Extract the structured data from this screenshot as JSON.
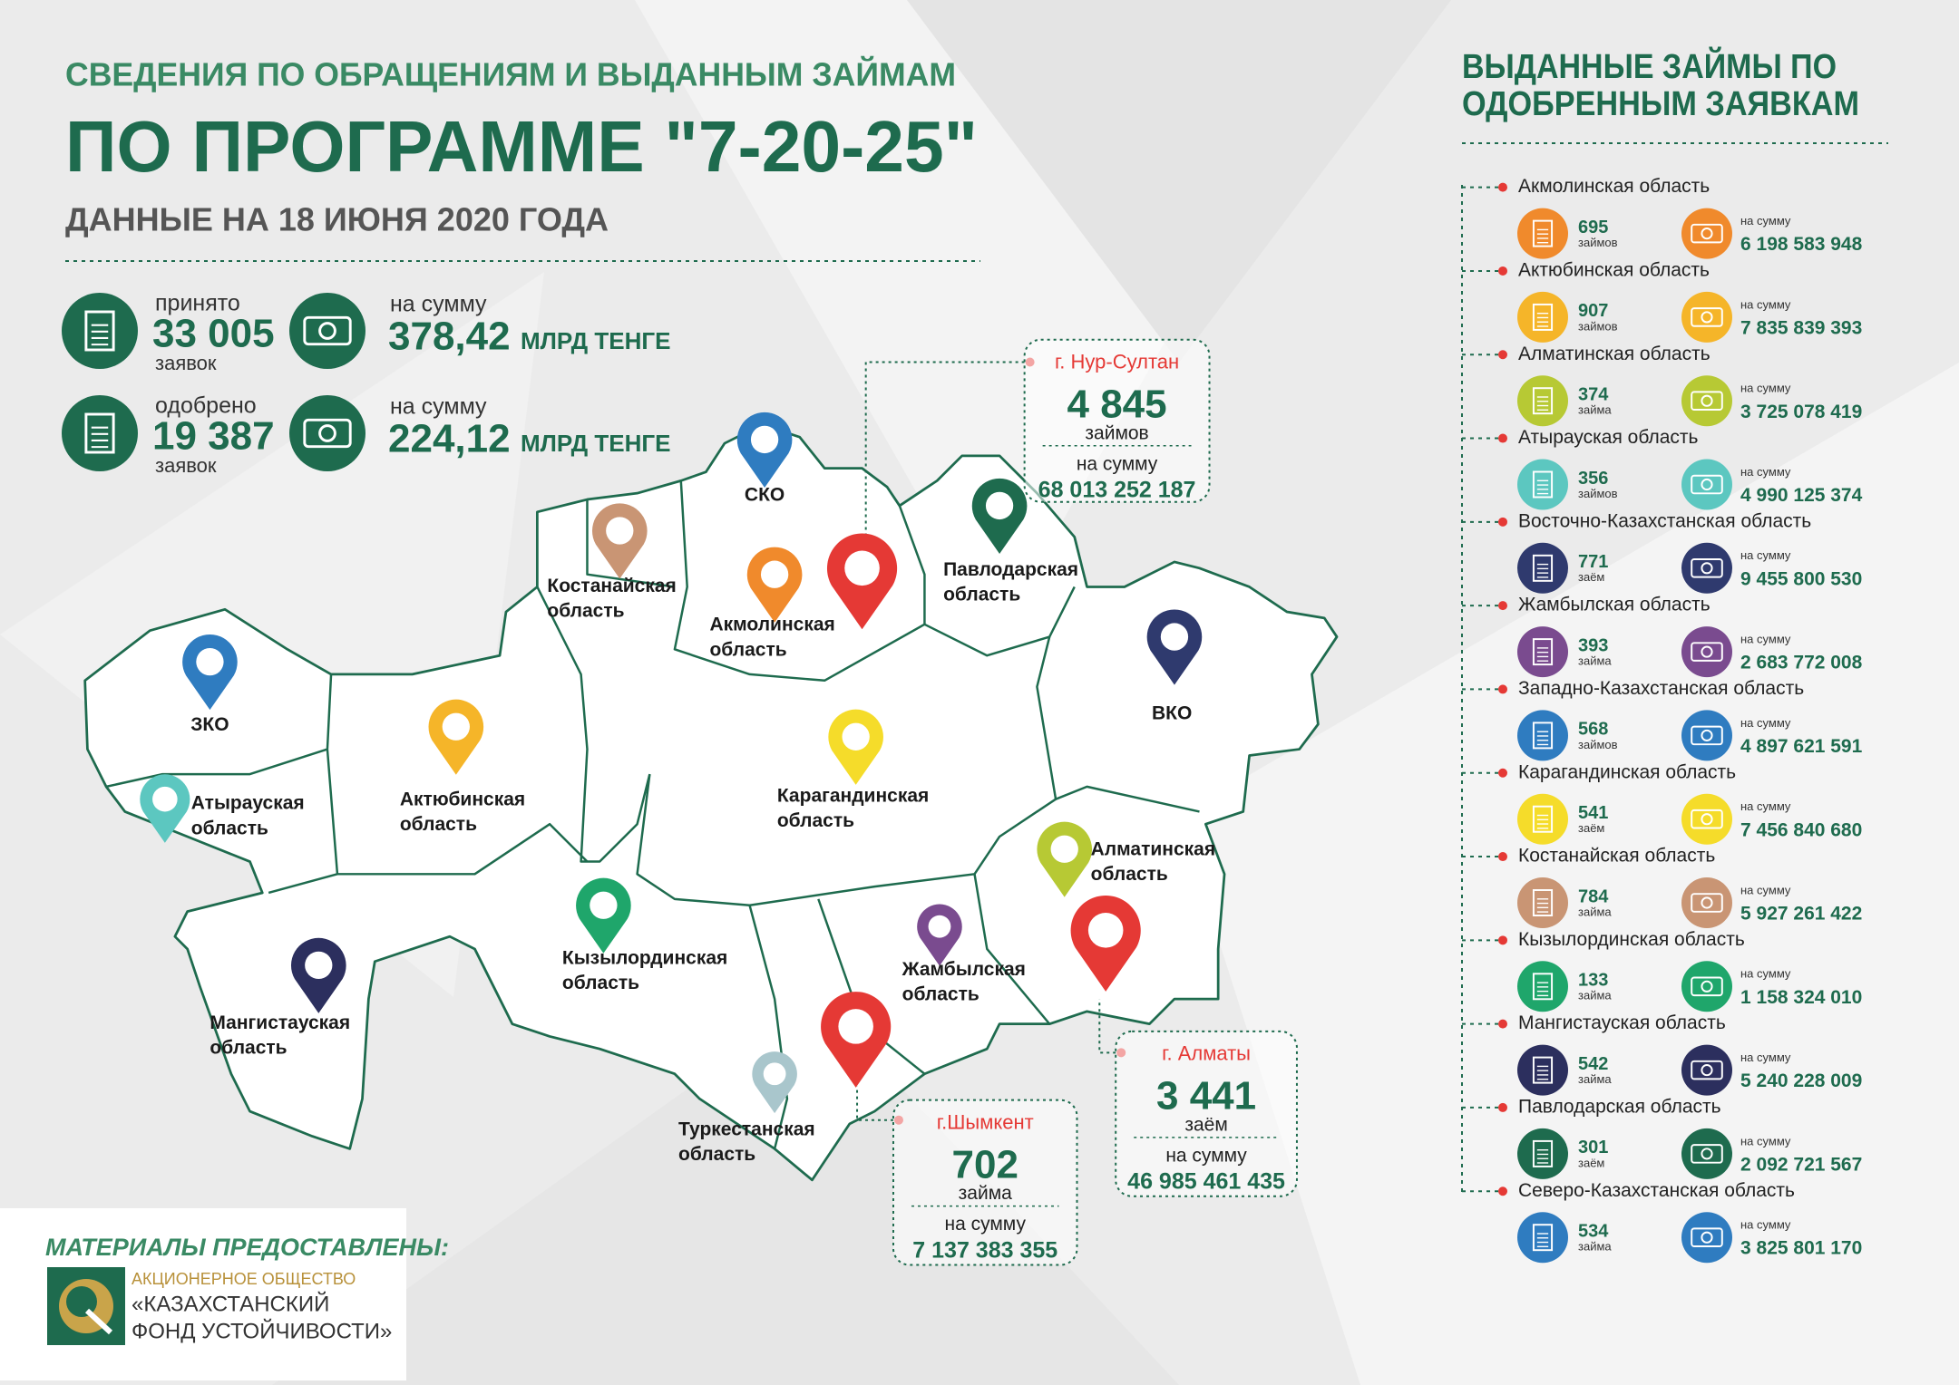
{
  "header": {
    "subtitle": "СВЕДЕНИЯ ПО ОБРАЩЕНИЯМ И ВЫДАННЫМ ЗАЙМАМ",
    "title": "ПО ПРОГРАММЕ \"7-20-25\"",
    "date": "ДАННЫЕ НА 18 ИЮНЯ 2020 ГОДА"
  },
  "summary": [
    {
      "label": "принято",
      "count": "33 005",
      "unit": "заявок",
      "sum_label": "на сумму",
      "sum": "378,42",
      "sum_unit": "МЛРД ТЕНГЕ"
    },
    {
      "label": "одобрено",
      "count": "19 387",
      "unit": "заявок",
      "sum_label": "на сумму",
      "sum": "224,12",
      "sum_unit": "МЛРД ТЕНГЕ"
    }
  ],
  "map": {
    "regions": [
      {
        "label": [
          "СКО"
        ]
      },
      {
        "label": [
          "Костанайская",
          "область"
        ]
      },
      {
        "label": [
          "Акмолинская",
          "область"
        ]
      },
      {
        "label": [
          "Павлодарская",
          "область"
        ]
      },
      {
        "label": [
          "ЗКО"
        ]
      },
      {
        "label": [
          "Атырауская",
          "область"
        ]
      },
      {
        "label": [
          "Актюбинская",
          "область"
        ]
      },
      {
        "label": [
          "Карагандинская",
          "область"
        ]
      },
      {
        "label": [
          "ВКО"
        ]
      },
      {
        "label": [
          "Алматинская",
          "область"
        ]
      },
      {
        "label": [
          "Жамбылская",
          "область"
        ]
      },
      {
        "label": [
          "Кызылординская",
          "область"
        ]
      },
      {
        "label": [
          "Мангистауская",
          "область"
        ]
      },
      {
        "label": [
          "Туркестанская",
          "область"
        ]
      }
    ],
    "cities": [
      {
        "name": "г. Нур-Султан",
        "count": "4 845",
        "unit": "займов",
        "sum_label": "на сумму",
        "sum": "68 013 252 187"
      },
      {
        "name": "г. Алматы",
        "count": "3 441",
        "unit": "заём",
        "sum_label": "на сумму",
        "sum": "46 985 461 435"
      },
      {
        "name": "г.Шымкент",
        "count": "702",
        "unit": "займа",
        "sum_label": "на сумму",
        "sum": "7 137 383 355"
      }
    ]
  },
  "loans": {
    "title": [
      "ВЫДАННЫЕ ЗАЙМЫ ПО",
      "ОДОБРЕННЫМ ЗАЯВКАМ"
    ],
    "regions": [
      {
        "name": "Акмолинская область",
        "color": "#f08a2c",
        "count": "695",
        "unit": "займов",
        "sum_label": "на сумму",
        "sum": "6 198 583 948"
      },
      {
        "name": "Актюбинская область",
        "color": "#f5b529",
        "count": "907",
        "unit": "займов",
        "sum_label": "на сумму",
        "sum": "7 835 839 393"
      },
      {
        "name": "Алматинская область",
        "color": "#b7c934",
        "count": "374",
        "unit": "займа",
        "sum_label": "на сумму",
        "sum": "3 725 078 419"
      },
      {
        "name": "Атырауская область",
        "color": "#5cc7c0",
        "count": "356",
        "unit": "займов",
        "sum_label": "на сумму",
        "sum": "4 990 125 374"
      },
      {
        "name": "Восточно-Казахстанская область",
        "color": "#2f3a6e",
        "count": "771",
        "unit": "заём",
        "sum_label": "на сумму",
        "sum": "9 455 800 530"
      },
      {
        "name": "Жамбылская область",
        "color": "#7a4b8f",
        "count": "393",
        "unit": "займа",
        "sum_label": "на сумму",
        "sum": "2 683 772 008"
      },
      {
        "name": "Западно-Казахстанская область",
        "color": "#2f7cc0",
        "count": "568",
        "unit": "займов",
        "sum_label": "на сумму",
        "sum": "4 897 621 591"
      },
      {
        "name": "Карагандинская область",
        "color": "#f5dc2a",
        "count": "541",
        "unit": "заём",
        "sum_label": "на сумму",
        "sum": "7 456 840 680"
      },
      {
        "name": "Костанайская область",
        "color": "#c99574",
        "count": "784",
        "unit": "займа",
        "sum_label": "на сумму",
        "sum": "5 927 261 422"
      },
      {
        "name": "Кызылординская область",
        "color": "#1fa66b",
        "count": "133",
        "unit": "займа",
        "sum_label": "на сумму",
        "sum": "1 158 324 010"
      },
      {
        "name": "Мангистауская область",
        "color": "#2c2f5e",
        "count": "542",
        "unit": "займа",
        "sum_label": "на сумму",
        "sum": "5 240 228 009"
      },
      {
        "name": "Павлодарская область",
        "color": "#1e6b4e",
        "count": "301",
        "unit": "заём",
        "sum_label": "на сумму",
        "sum": "2 092 721 567"
      },
      {
        "name": "Северо-Казахстанская область",
        "color": "#2f7cc0",
        "count": "534",
        "unit": "займа",
        "sum_label": "на сумму",
        "sum": "3 825 801 170"
      }
    ]
  },
  "footer": {
    "caption": "МАТЕРИАЛЫ ПРЕДОСТАВЛЕНЫ:",
    "org": [
      "АКЦИОНЕРНОЕ ОБЩЕСТВО",
      "«КАЗАХСТАНСКИЙ",
      "ФОНД УСТОЙЧИВОСТИ»"
    ]
  }
}
